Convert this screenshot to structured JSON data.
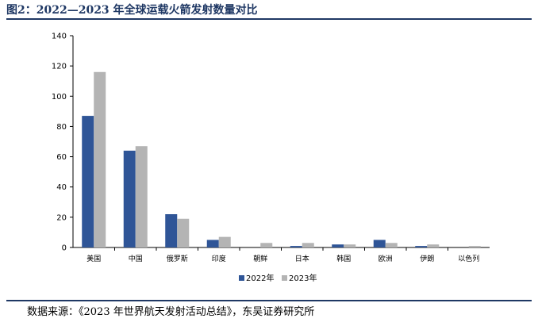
{
  "header": {
    "title": "图2：2022—2023 年全球运载火箭发射数量对比"
  },
  "footer": {
    "source": "数据来源：《2023 年世界航天发射活动总结》，东吴证券研究所"
  },
  "colors": {
    "series_2022": "#2f5597",
    "series_2023": "#b4b4b4",
    "rule": "#1f3864"
  },
  "chart_data": {
    "type": "bar",
    "title": "",
    "xlabel": "",
    "ylabel": "",
    "ylim": [
      0,
      140
    ],
    "yticks": [
      "0",
      "20",
      "40",
      "60",
      "80",
      "100",
      "120",
      "140"
    ],
    "categories": [
      "美国",
      "中国",
      "俄罗斯",
      "印度",
      "朝鲜",
      "日本",
      "韩国",
      "欧洲",
      "伊朗",
      "以色列"
    ],
    "series": [
      {
        "name": "2022年",
        "values": [
          87,
          64,
          22,
          5,
          0,
          1,
          2,
          5,
          1,
          0
        ]
      },
      {
        "name": "2023年",
        "values": [
          116,
          67,
          19,
          7,
          3,
          3,
          2,
          3,
          2,
          1
        ]
      }
    ],
    "legend_position": "bottom",
    "grid": false
  }
}
